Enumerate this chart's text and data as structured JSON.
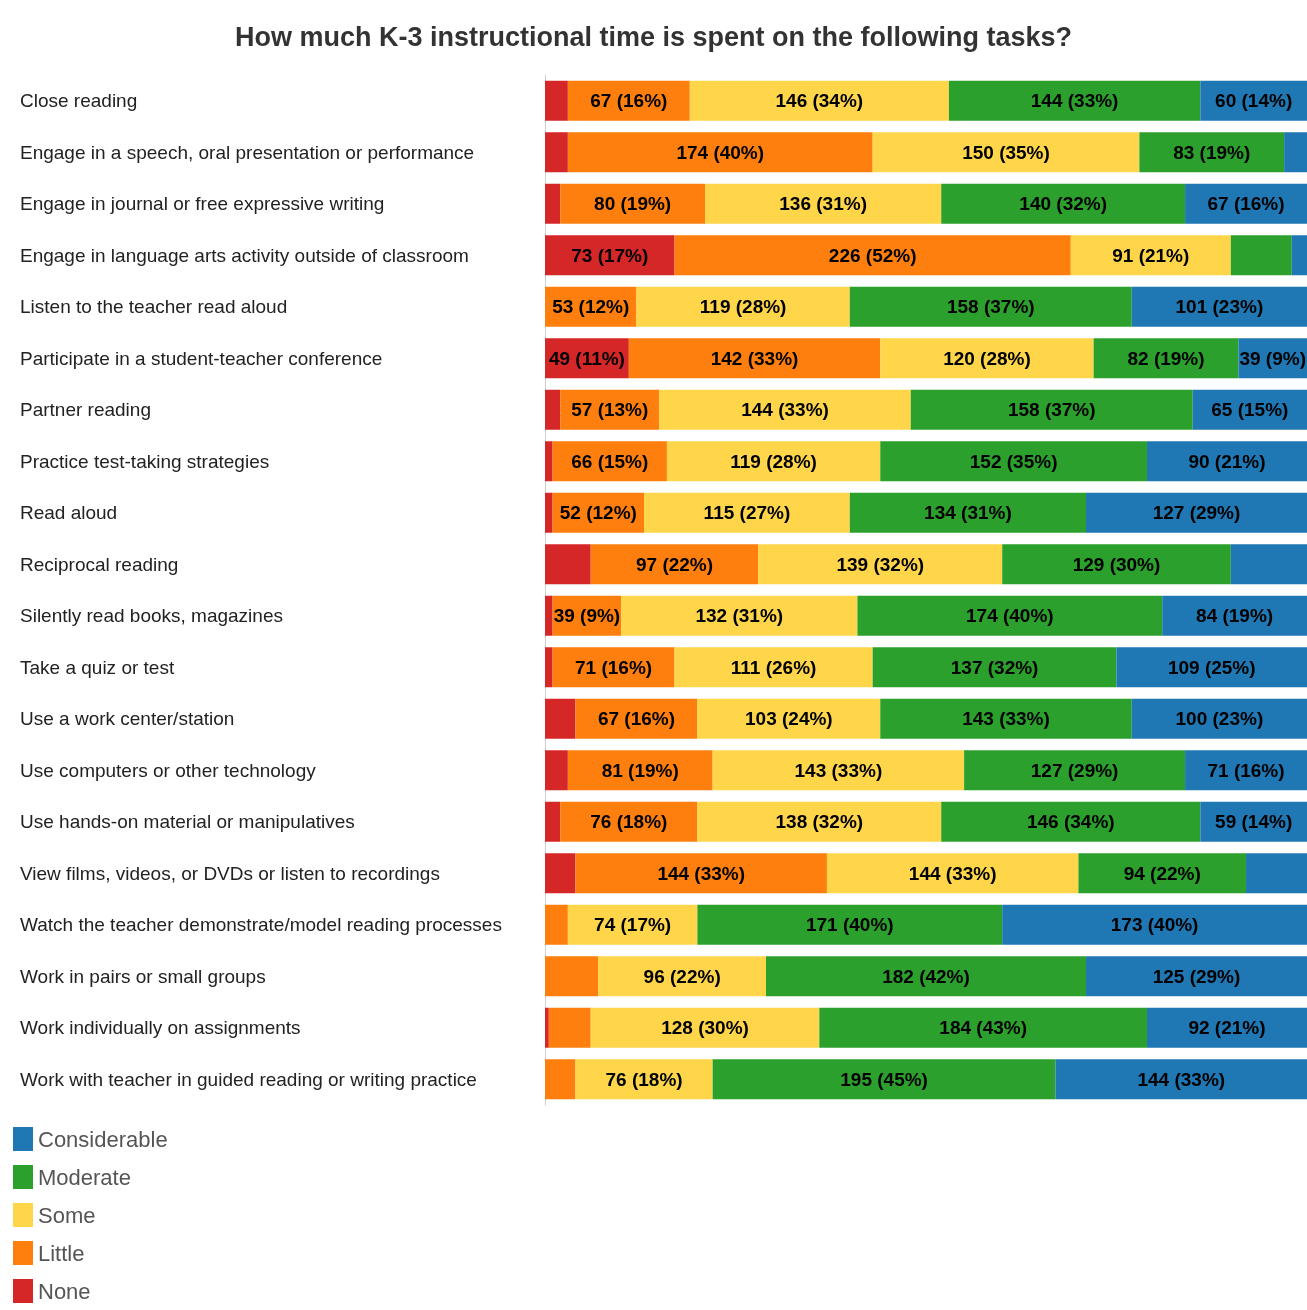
{
  "chart_data": {
    "type": "bar",
    "orientation": "horizontal",
    "stacked": true,
    "title": "How much K-3 instructional time is spent on the following tasks?",
    "legend": "bottom left",
    "categories": [
      "Close reading",
      "Engage in a speech, oral presentation or performance",
      "Engage in journal or free expressive writing",
      "Engage in language arts activity outside of classroom",
      "Listen to the teacher read aloud",
      "Participate in a student-teacher conference",
      "Partner reading",
      "Practice test-taking strategies",
      "Read aloud",
      "Reciprocal reading",
      "Silently read books, magazines",
      "Take a quiz or test",
      "Use a work center/station",
      "Use computers or other technology",
      "Use hands-on material or manipulatives",
      "View films, videos, or DVDs or listen to recordings",
      "Watch the teacher demonstrate/model reading processes",
      "Work in pairs or small groups",
      "Work individually on assignments",
      "Work with teacher in guided reading or writing practice"
    ],
    "series": [
      {
        "name": "None",
        "color": "#d62728",
        "values": [
          3,
          3,
          2,
          17,
          null,
          11,
          2,
          1,
          1,
          6,
          1,
          1,
          4,
          3,
          2,
          4,
          null,
          null,
          0.5,
          null
        ],
        "value_labels": [
          null,
          null,
          null,
          "73 (17%)",
          null,
          "49 (11%)",
          null,
          null,
          null,
          null,
          null,
          null,
          null,
          null,
          null,
          null,
          null,
          null,
          null,
          null
        ]
      },
      {
        "name": "Little",
        "color": "#ff7f0e",
        "values": [
          16,
          40,
          19,
          52,
          12,
          33,
          13,
          15,
          12,
          22,
          9,
          16,
          16,
          19,
          18,
          33,
          3,
          7,
          5.5,
          4
        ],
        "value_labels": [
          "67 (16%)",
          "174 (40%)",
          "80 (19%)",
          "226 (52%)",
          "53 (12%)",
          "142 (33%)",
          "57 (13%)",
          "66 (15%)",
          "52 (12%)",
          "97 (22%)",
          "39 (9%)",
          "71 (16%)",
          "67 (16%)",
          "81 (19%)",
          "76 (18%)",
          "144 (33%)",
          null,
          null,
          null,
          null
        ]
      },
      {
        "name": "Some",
        "color": "#ffd64a",
        "values": [
          34,
          35,
          31,
          21,
          28,
          28,
          33,
          28,
          27,
          32,
          31,
          26,
          24,
          33,
          32,
          33,
          17,
          22,
          30,
          18
        ],
        "value_labels": [
          "146 (34%)",
          "150 (35%)",
          "136 (31%)",
          "91 (21%)",
          "119 (28%)",
          "120 (28%)",
          "144 (33%)",
          "119 (28%)",
          "115 (27%)",
          "139 (32%)",
          "132 (31%)",
          "111 (26%)",
          "103 (24%)",
          "143 (33%)",
          "138 (32%)",
          "144 (33%)",
          "74 (17%)",
          "96 (22%)",
          "128 (30%)",
          "76 (18%)"
        ]
      },
      {
        "name": "Moderate",
        "color": "#2ca02c",
        "values": [
          33,
          19,
          32,
          8,
          37,
          19,
          37,
          35,
          31,
          30,
          40,
          32,
          33,
          29,
          34,
          22,
          40,
          42,
          43,
          45
        ],
        "value_labels": [
          "144 (33%)",
          "83 (19%)",
          "140 (32%)",
          null,
          "158 (37%)",
          "82 (19%)",
          "158 (37%)",
          "152 (35%)",
          "134 (31%)",
          "129 (30%)",
          "174 (40%)",
          "137 (32%)",
          "143 (33%)",
          "127 (29%)",
          "146 (34%)",
          "94 (22%)",
          "171 (40%)",
          "182 (42%)",
          "184 (43%)",
          "195 (45%)"
        ]
      },
      {
        "name": "Considerable",
        "color": "#1f77b4",
        "values": [
          14,
          3,
          16,
          2,
          23,
          9,
          15,
          21,
          29,
          10,
          19,
          25,
          23,
          16,
          14,
          8,
          40,
          29,
          21,
          33
        ],
        "value_labels": [
          "60 (14%)",
          null,
          "67 (16%)",
          null,
          "101 (23%)",
          "39 (9%)",
          "65 (15%)",
          "90 (21%)",
          "127 (29%)",
          null,
          "84 (19%)",
          "109 (25%)",
          "100 (23%)",
          "71 (16%)",
          "59 (14%)",
          null,
          "173 (40%)",
          "125 (29%)",
          "92 (21%)",
          "144 (33%)"
        ]
      }
    ]
  }
}
